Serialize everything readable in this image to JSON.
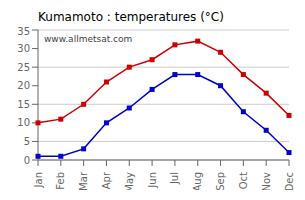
{
  "chart_data": {
    "type": "line",
    "title": "Kumamoto : temperatures (°C)",
    "categories": [
      "Jan",
      "Feb",
      "Mar",
      "Apr",
      "May",
      "Jun",
      "Jul",
      "Aug",
      "Sep",
      "Oct",
      "Nov",
      "Dec"
    ],
    "series": [
      {
        "color": "#cc0000",
        "values": [
          10,
          11,
          15,
          21,
          25,
          27,
          31,
          32,
          29,
          23,
          18,
          12
        ]
      },
      {
        "color": "#0000cc",
        "values": [
          1,
          1,
          3,
          10,
          14,
          19,
          23,
          23,
          20,
          13,
          8,
          2
        ]
      }
    ],
    "ylim": [
      0,
      35
    ],
    "yticks": [
      0,
      5,
      10,
      15,
      20,
      25,
      30,
      35
    ],
    "grid": true,
    "marker": "square",
    "annotation": "www.allmetsat.com"
  }
}
